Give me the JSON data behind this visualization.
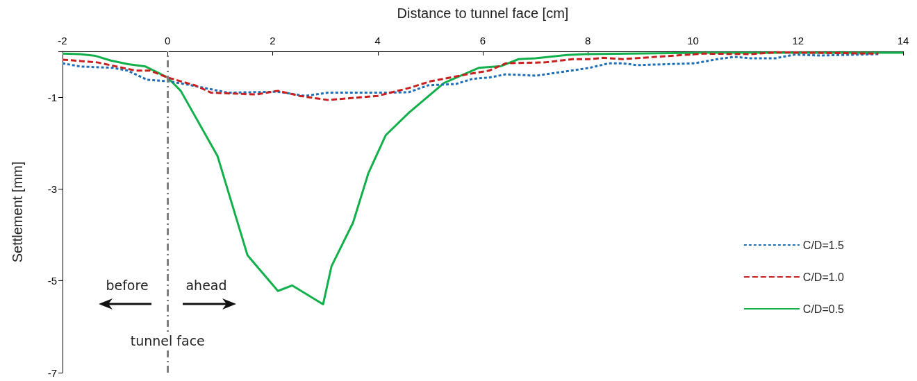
{
  "chart_data": {
    "type": "line",
    "xlabel": "Distance to tunnel face [cm]",
    "ylabel": "Settlement [mm]",
    "xlim": [
      -2,
      14
    ],
    "xticks": [
      -2,
      0,
      2,
      4,
      6,
      8,
      10,
      12,
      14
    ],
    "ylim": [
      -7,
      0
    ],
    "yticks": [
      -7,
      -5,
      -3,
      -1,
      {
        "value": 0,
        "label": null
      }
    ],
    "grid": false,
    "legend": "right",
    "marker": "none",
    "ref_lines": [
      {
        "axis": "x",
        "value": 0,
        "label": "tunnel face",
        "color": "#7f7f7f",
        "line_style": "dashdot"
      }
    ],
    "annotations": [
      "before",
      "ahead"
    ],
    "series": [
      {
        "name": "C/D=1.5",
        "color": "#1f6fb8",
        "line_style": "dotted",
        "x": [
          -2,
          -1.66,
          -1.03,
          -0.76,
          -0.39,
          0,
          0.41,
          1.15,
          2.1,
          2.62,
          3.05,
          3.69,
          4.1,
          4.59,
          4.96,
          5.49,
          5.8,
          6.12,
          6.44,
          7.02,
          8.03,
          8.4,
          8.66,
          8.93,
          10.04,
          10.46,
          10.78,
          11.1,
          11.57,
          11.94,
          12.42,
          13.53
        ],
        "values": [
          -0.26,
          -0.33,
          -0.36,
          -0.42,
          -0.62,
          -0.65,
          -0.73,
          -0.9,
          -0.88,
          -0.97,
          -0.9,
          -0.9,
          -0.9,
          -0.89,
          -0.74,
          -0.71,
          -0.6,
          -0.57,
          -0.5,
          -0.53,
          -0.36,
          -0.26,
          -0.26,
          -0.3,
          -0.26,
          -0.17,
          -0.12,
          -0.15,
          -0.15,
          -0.07,
          -0.09,
          -0.06
        ]
      },
      {
        "name": "C/D=1.0",
        "color": "#c8201e",
        "line_style": "dashed",
        "x": [
          -2,
          -1.34,
          -0.6,
          -0.33,
          0,
          0.52,
          0.83,
          1.68,
          2.1,
          2.51,
          3.05,
          4.0,
          4.59,
          5.01,
          5.7,
          6.12,
          6.44,
          7.18,
          7.71,
          8.03,
          8.29,
          8.66,
          9.93,
          10.2,
          11.1,
          11.6,
          13.53
        ],
        "values": [
          -0.18,
          -0.24,
          -0.42,
          -0.42,
          -0.57,
          -0.74,
          -0.9,
          -0.94,
          -0.86,
          -0.97,
          -1.06,
          -0.97,
          -0.8,
          -0.65,
          -0.5,
          -0.42,
          -0.26,
          -0.24,
          -0.17,
          -0.17,
          -0.14,
          -0.17,
          -0.07,
          -0.05,
          -0.06,
          -0.02,
          -0.05
        ]
      },
      {
        "name": "C/D=0.5",
        "color": "#12b04a",
        "line_style": "solid",
        "x": [
          -2,
          -1.67,
          -1.37,
          -1.08,
          -0.75,
          -0.42,
          0,
          0.25,
          0.95,
          1.52,
          2.1,
          2.37,
          2.96,
          3.12,
          3.53,
          3.82,
          4.15,
          4.59,
          5.26,
          5.92,
          6.35,
          6.68,
          7.0,
          7.6,
          7.95,
          10.2,
          14
        ],
        "values": [
          -0.05,
          -0.06,
          -0.1,
          -0.2,
          -0.28,
          -0.33,
          -0.57,
          -0.86,
          -2.28,
          -4.44,
          -5.22,
          -5.1,
          -5.51,
          -4.68,
          -3.73,
          -2.66,
          -1.83,
          -1.34,
          -0.69,
          -0.36,
          -0.32,
          -0.17,
          -0.15,
          -0.08,
          -0.06,
          -0.03,
          -0.03
        ]
      }
    ]
  }
}
